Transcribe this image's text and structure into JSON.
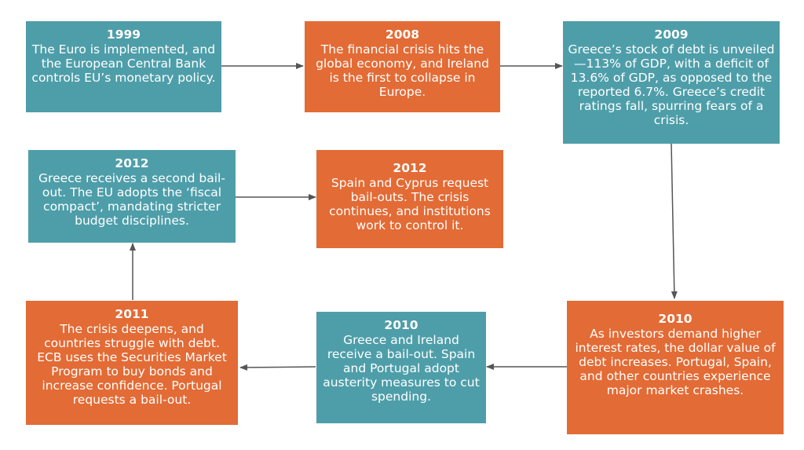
{
  "colors": {
    "teal": "#4e9ea9",
    "orange": "#e36b35",
    "arrow": "#555555"
  },
  "events": [
    {
      "year": "1999",
      "text": "The Euro is implemented, and the European Central Bank controls EU’s monetary policy."
    },
    {
      "year": "2008",
      "text": "The financial crisis hits the global economy, and Ireland is the first to collapse in Europe."
    },
    {
      "year": "2009",
      "text": "Greece’s stock of debt is unveiled—113% of GDP, with a deficit of 13.6% of GDP, as opposed to the reported 6.7%. Greece’s credit ratings fall, spurring fears of a crisis."
    },
    {
      "year": "2012",
      "text": "Greece receives a second bail-out. The EU adopts the ‘fiscal compact’, mandating stricter budget disciplines."
    },
    {
      "year": "2012",
      "text": "Spain and Cyprus request bail-outs. The crisis continues, and institutions work to control it."
    },
    {
      "year": "2011",
      "text": "The crisis deepens, and countries struggle with debt. ECB uses the Securities Market Program to buy bonds and increase confidence. Portugal requests a bail-out."
    },
    {
      "year": "2010",
      "text": "Greece and Ireland receive a bail-out. Spain and Portugal adopt austerity measures to cut spending."
    },
    {
      "year": "2010",
      "text": "As investors demand higher interest rates, the dollar value of debt increases. Portugal, Spain, and other countries experience major market crashes."
    }
  ]
}
